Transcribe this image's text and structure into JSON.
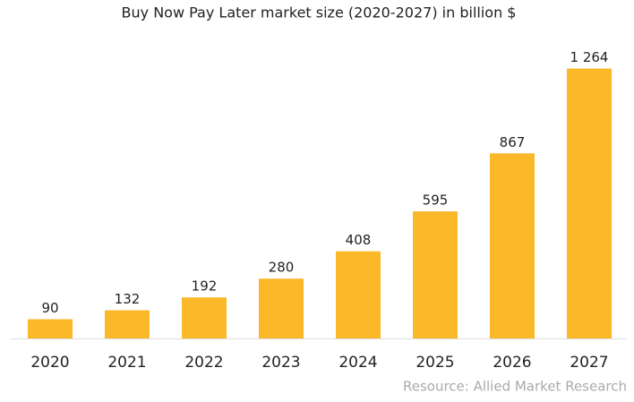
{
  "chart_data": {
    "type": "bar",
    "title": "Buy Now Pay Later market size (2020-2027) in billion $",
    "categories": [
      "2020",
      "2021",
      "2022",
      "2023",
      "2024",
      "2025",
      "2026",
      "2027"
    ],
    "values": [
      90,
      132,
      192,
      280,
      408,
      595,
      867,
      1264
    ],
    "value_labels": [
      "90",
      "132",
      "192",
      "280",
      "408",
      "595",
      "867",
      "1 264"
    ],
    "color": "#fbb829",
    "ylim": [
      0,
      1300
    ],
    "source": "Resource: Allied Market Research"
  }
}
